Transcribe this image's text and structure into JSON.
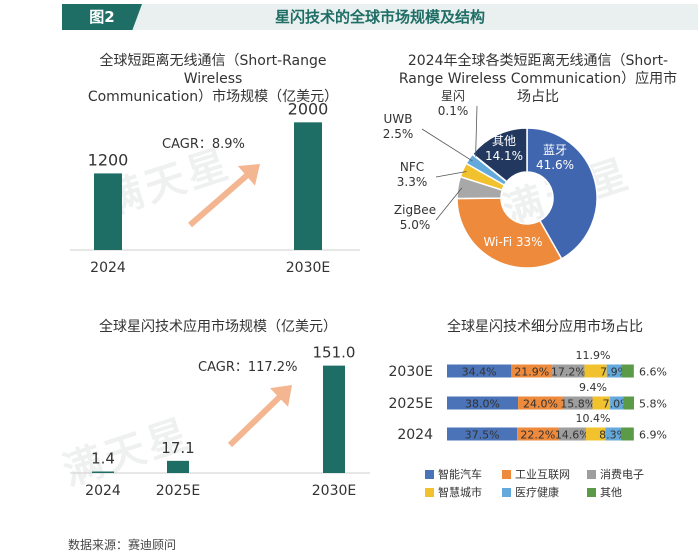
{
  "figure": {
    "label": "图2",
    "title": "星闪技术的全球市场规模及结构"
  },
  "watermark": "满天星",
  "source": "数据来源：赛迪顾问",
  "colors": {
    "teal": "#1f6e66",
    "arrow": "#f1a97c",
    "bluetooth": "#4166b0",
    "wifi": "#ee8a3c",
    "zigbee": "#a8a8a8",
    "nfc": "#f2c12e",
    "uwb": "#64a9dc",
    "starflash": "#5b9a47",
    "other": "#23385f",
    "auto": "#4a73b8",
    "iiot": "#ee8a3c",
    "consumer": "#9e9e9e",
    "city": "#f2c12e",
    "medical": "#64a9dc",
    "misc": "#5b9a47"
  },
  "chart_data": [
    {
      "type": "bar",
      "title_line1": "全球短距离无线通信（Short-Range Wireless",
      "title_line2": "Communication）市场规模（亿美元）",
      "categories": [
        "2024",
        "2030E"
      ],
      "values": [
        1200,
        2000
      ],
      "value_labels": [
        "1200",
        "2000"
      ],
      "annotation": "CAGR：8.9%",
      "ylim": [
        0,
        2350
      ]
    },
    {
      "type": "pie",
      "title_line1": "2024年全球各类短距离无线通信（Short-",
      "title_line2": "Range Wireless Communication）应用市",
      "title_line3": "场占比",
      "slices": [
        {
          "name": "蓝牙",
          "value": 41.6,
          "label": "41.6%",
          "color": "bluetooth"
        },
        {
          "name": "Wi-Fi",
          "value": 33,
          "label": "33%",
          "color": "wifi"
        },
        {
          "name": "ZigBee",
          "value": 5.0,
          "label": "5.0%",
          "color": "zigbee"
        },
        {
          "name": "NFC",
          "value": 3.3,
          "label": "3.3%",
          "color": "nfc"
        },
        {
          "name": "UWB",
          "value": 2.5,
          "label": "2.5%",
          "color": "uwb"
        },
        {
          "name": "星闪",
          "value": 0.1,
          "label": "0.1%",
          "color": "starflash"
        },
        {
          "name": "其他",
          "value": 14.1,
          "label": "14.1%",
          "color": "other"
        }
      ]
    },
    {
      "type": "bar",
      "title": "全球星闪技术应用市场规模（亿美元）",
      "categories": [
        "2024",
        "2025E",
        "2030E"
      ],
      "values": [
        1.4,
        17.1,
        151.0
      ],
      "value_labels": [
        "1.4",
        "17.1",
        "151.0"
      ],
      "annotation": "CAGR：117.2%",
      "ylim": [
        0,
        180
      ]
    },
    {
      "type": "stacked_bar_horizontal",
      "title": "全球星闪技术细分应用市场占比",
      "categories": [
        "2030E",
        "2025E",
        "2024"
      ],
      "series": [
        {
          "name": "智能汽车",
          "color": "auto",
          "values": [
            34.4,
            38.0,
            37.5
          ],
          "labels": [
            "34.4%",
            "38.0%",
            "37.5%"
          ]
        },
        {
          "name": "工业互联网",
          "color": "iiot",
          "values": [
            21.9,
            24.0,
            22.2
          ],
          "labels": [
            "21.9%",
            "24.0%",
            "22.2%"
          ]
        },
        {
          "name": "消费电子",
          "color": "consumer",
          "values": [
            17.2,
            15.8,
            14.6
          ],
          "labels": [
            "17.2%",
            "15.8%",
            "14.6%"
          ]
        },
        {
          "name": "智慧城市",
          "color": "city",
          "values": [
            11.9,
            9.4,
            10.4
          ],
          "labels": [
            "11.9%",
            "9.4%",
            "10.4%"
          ]
        },
        {
          "name": "医疗健康",
          "color": "medical",
          "values": [
            7.9,
            7.0,
            8.3
          ],
          "labels": [
            "7.9%",
            "7.0%",
            "8.3%"
          ]
        },
        {
          "name": "其他",
          "color": "misc",
          "values": [
            6.6,
            5.8,
            6.9
          ],
          "labels": [
            "6.6%",
            "5.8%",
            "6.9%"
          ]
        }
      ],
      "xlim": [
        0,
        100
      ]
    }
  ]
}
